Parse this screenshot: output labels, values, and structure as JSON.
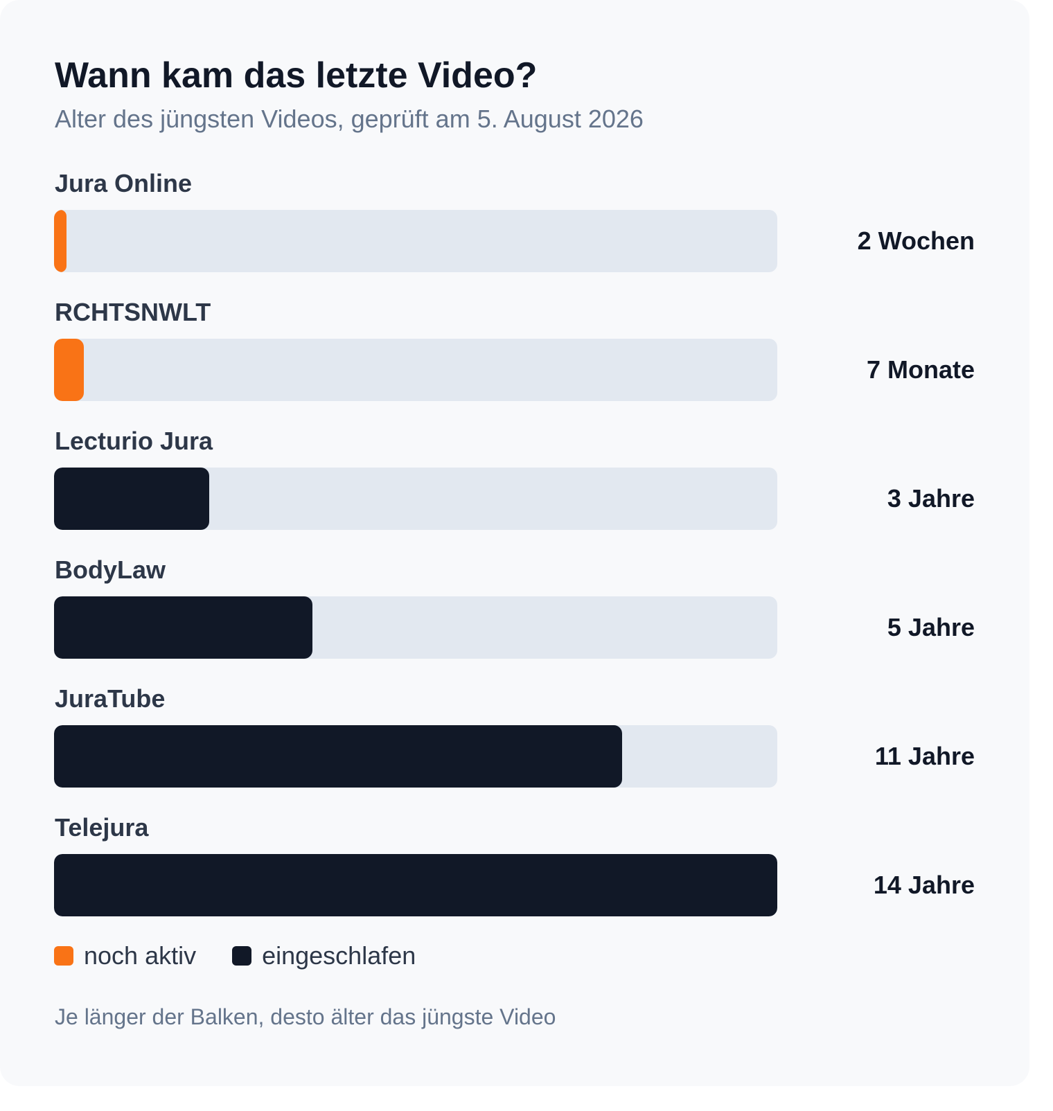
{
  "chart_data": {
    "type": "bar",
    "orientation": "horizontal",
    "title": "Wann kam das letzte Video?",
    "subtitle": "Alter des jüngsten Videos, geprüft am 5. August 2026",
    "categories": [
      "Jura Online",
      "RCHTSNWLT",
      "Lecturio Jura",
      "BodyLaw",
      "JuraTube",
      "Telejura"
    ],
    "values_years": [
      0.04,
      0.58,
      3,
      5,
      11,
      14
    ],
    "value_labels": [
      "2 Wochen",
      "7 Monate",
      "3 Jahre",
      "5 Jahre",
      "11 Jahre",
      "14 Jahre"
    ],
    "status": [
      "aktiv",
      "aktiv",
      "eingeschlafen",
      "eingeschlafen",
      "eingeschlafen",
      "eingeschlafen"
    ],
    "xlim": [
      0,
      14
    ],
    "grid": false,
    "legend": {
      "placement": "bottom-left",
      "items": [
        {
          "key": "aktiv",
          "label": "noch aktiv",
          "color": "#f97316"
        },
        {
          "key": "eingeschlafen",
          "label": "eingeschlafen",
          "color": "#111827"
        }
      ]
    },
    "footnote": "Je länger der Balken, desto älter das jüngste Video"
  },
  "colors": {
    "track": "#e2e8f0",
    "background": "#f8f9fb"
  }
}
